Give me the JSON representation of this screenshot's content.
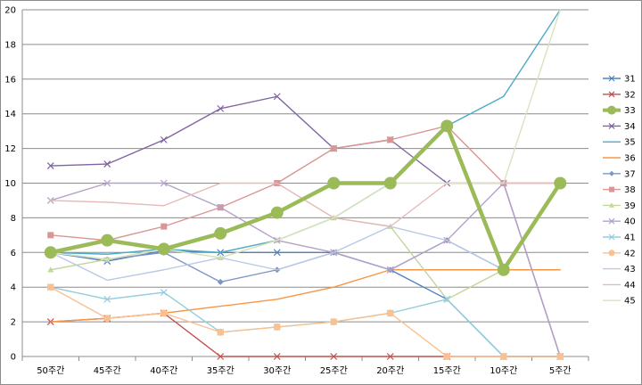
{
  "chart_data": {
    "type": "line",
    "categories": [
      "50주간",
      "45주간",
      "40주간",
      "35주간",
      "30주간",
      "25주간",
      "20주간",
      "15주간",
      "10주간",
      "5주간"
    ],
    "ylim": [
      0,
      20
    ],
    "yticks": [
      0,
      2,
      4,
      6,
      8,
      10,
      12,
      14,
      16,
      18,
      20
    ],
    "grid": true,
    "legend_position": "right",
    "series": [
      {
        "name": "31",
        "color": "#4f81bd",
        "marker": "x",
        "values": [
          6,
          5.5,
          6.1,
          6,
          6,
          6,
          5,
          3.3,
          0,
          0
        ]
      },
      {
        "name": "32",
        "color": "#c0504d",
        "marker": "x",
        "values": [
          2,
          2.2,
          2.5,
          0,
          0,
          0,
          0,
          0,
          0,
          0
        ]
      },
      {
        "name": "33",
        "color": "#9bbb59",
        "marker": "circle",
        "bold": true,
        "values": [
          6,
          6.7,
          6.2,
          7.1,
          8.3,
          10,
          10,
          13.3,
          5,
          10
        ]
      },
      {
        "name": "34",
        "color": "#8064a2",
        "marker": "x",
        "values": [
          11,
          11.1,
          12.5,
          14.3,
          15,
          12,
          12.5,
          10,
          10,
          0
        ]
      },
      {
        "name": "35",
        "color": "#4bacc6",
        "marker": "none",
        "values": [
          6,
          5.9,
          6.2,
          6,
          6.7,
          8,
          10,
          13.3,
          15,
          20
        ]
      },
      {
        "name": "36",
        "color": "#f79646",
        "marker": "none",
        "values": [
          2,
          2.2,
          2.5,
          2.9,
          3.3,
          4,
          5,
          5,
          5,
          5
        ]
      },
      {
        "name": "37",
        "color": "#7f96c4",
        "marker": "diamond",
        "values": [
          6,
          5.6,
          6,
          4.3,
          5,
          6,
          5,
          6.7,
          5,
          10
        ]
      },
      {
        "name": "38",
        "color": "#d99694",
        "marker": "square",
        "values": [
          7,
          6.7,
          7.5,
          8.6,
          10,
          12,
          12.5,
          13.3,
          10,
          10
        ]
      },
      {
        "name": "39",
        "color": "#c3d69b",
        "marker": "triangle",
        "values": [
          5,
          5.6,
          6.2,
          5.7,
          6.7,
          8,
          7.5,
          3.3,
          5,
          10
        ]
      },
      {
        "name": "40",
        "color": "#b3a2c7",
        "marker": "x",
        "values": [
          9,
          10,
          10,
          8.6,
          6.7,
          6,
          5,
          6.7,
          10,
          0
        ]
      },
      {
        "name": "41",
        "color": "#93cddd",
        "marker": "x",
        "values": [
          4,
          3.3,
          3.7,
          1.4,
          1.7,
          2,
          2.5,
          3.3,
          0,
          0
        ]
      },
      {
        "name": "42",
        "color": "#fac090",
        "marker": "circle",
        "values": [
          4,
          2.2,
          2.5,
          1.4,
          1.7,
          2,
          2.5,
          0,
          0,
          0
        ]
      },
      {
        "name": "43",
        "color": "#b9c9e6",
        "marker": "none",
        "values": [
          6,
          4.4,
          5,
          5.7,
          5,
          6,
          7.5,
          6.7,
          5,
          10
        ]
      },
      {
        "name": "44",
        "color": "#e6b9b8",
        "marker": "none",
        "values": [
          9,
          8.9,
          8.7,
          10,
          10,
          8,
          7.5,
          10,
          10,
          10
        ]
      },
      {
        "name": "45",
        "color": "#d7e4bd",
        "marker": "none",
        "values": [
          6,
          5.6,
          6.2,
          5.7,
          6.7,
          8,
          10,
          10,
          10,
          20
        ]
      }
    ]
  }
}
